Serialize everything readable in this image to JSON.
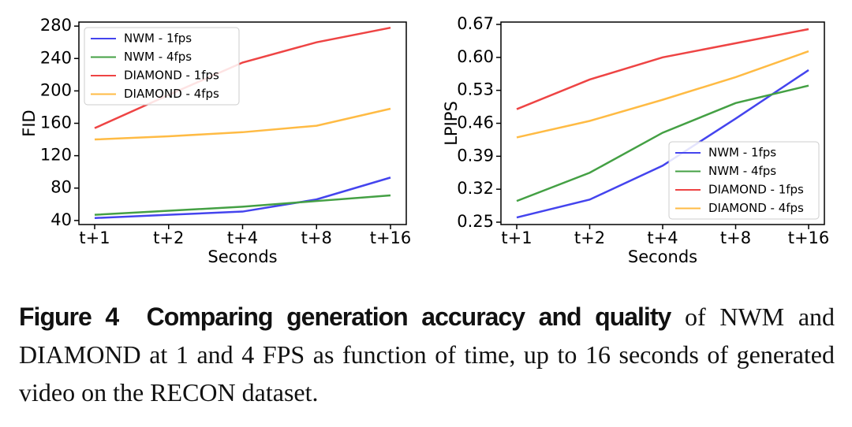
{
  "chart_data": [
    {
      "type": "line",
      "ylabel": "FID",
      "xlabel": "Seconds",
      "categories": [
        "t+1",
        "t+2",
        "t+4",
        "t+8",
        "t+16"
      ],
      "ylim": [
        35,
        285
      ],
      "yticks": [
        40,
        80,
        120,
        160,
        200,
        240,
        280
      ],
      "legend": "upper left",
      "series": [
        {
          "name": "NWM - 1fps",
          "color": "#4444ee",
          "values": [
            43,
            47,
            51,
            66,
            93
          ]
        },
        {
          "name": "NWM - 4fps",
          "color": "#44a044",
          "values": [
            47,
            52,
            57,
            64,
            71
          ]
        },
        {
          "name": "DIAMOND - 1fps",
          "color": "#ee4444",
          "values": [
            154,
            195,
            235,
            260,
            278
          ]
        },
        {
          "name": "DIAMOND - 4fps",
          "color": "#ffbb44",
          "values": [
            140,
            144,
            149,
            157,
            178
          ]
        }
      ]
    },
    {
      "type": "line",
      "ylabel": "LPIPS",
      "xlabel": "Seconds",
      "categories": [
        "t+1",
        "t+2",
        "t+4",
        "t+8",
        "t+16"
      ],
      "ylim": [
        0.245,
        0.675
      ],
      "yticks": [
        0.25,
        0.32,
        0.39,
        0.46,
        0.53,
        {
          "value": 0.6,
          "label": "0.60"
        },
        0.67
      ],
      "legend": "lower right",
      "series": [
        {
          "name": "NWM - 1fps",
          "color": "#4444ee",
          "values": [
            0.26,
            0.298,
            0.37,
            0.47,
            0.573
          ]
        },
        {
          "name": "NWM - 4fps",
          "color": "#44a044",
          "values": [
            0.295,
            0.355,
            0.44,
            0.503,
            0.54
          ]
        },
        {
          "name": "DIAMOND - 1fps",
          "color": "#ee4444",
          "values": [
            0.49,
            0.553,
            0.6,
            0.63,
            0.66
          ]
        },
        {
          "name": "DIAMOND - 4fps",
          "color": "#ffbb44",
          "values": [
            0.43,
            0.465,
            0.51,
            0.558,
            0.613
          ]
        }
      ]
    }
  ],
  "caption": {
    "label": "Figure 4",
    "title": "Comparing generation accuracy and quality",
    "text": "of NWM and DIAMOND at 1 and 4 FPS as function of time, up to 16 seconds of generated video on the RECON dataset."
  }
}
